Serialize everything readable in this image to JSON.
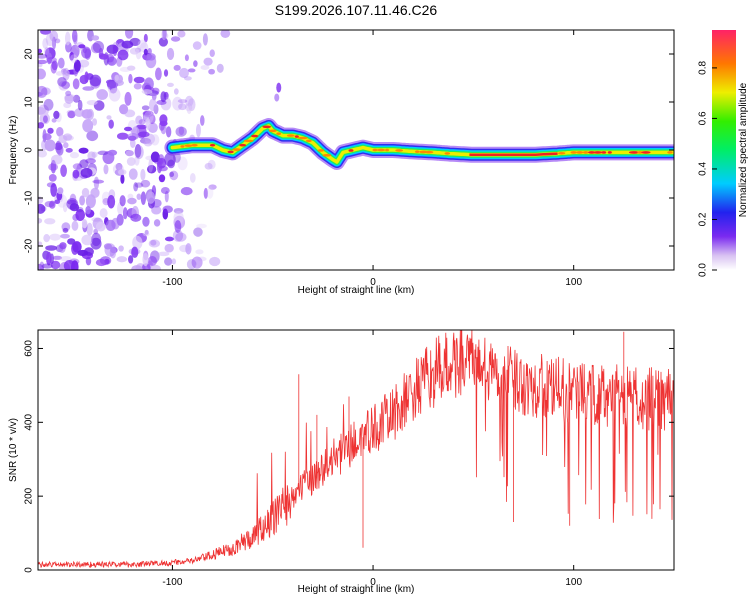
{
  "title": "S199.2026.107.11.46.C26",
  "chart_data": [
    {
      "type": "heatmap",
      "name": "spectrogram",
      "xlabel": "Height of straight line (km)",
      "ylabel": "Frequency (Hz)",
      "xlim": [
        -167,
        150
      ],
      "ylim": [
        -25,
        25
      ],
      "xticks": [
        -100,
        0,
        100
      ],
      "yticks": [
        -20,
        -10,
        0,
        10,
        20
      ],
      "colorbar": {
        "label": "Normalized spectral amplitude",
        "range": [
          0,
          0.95
        ],
        "ticks": [
          0.0,
          0.2,
          0.4,
          0.6,
          0.8
        ]
      },
      "ridge": {
        "x": [
          -100,
          -90,
          -80,
          -75,
          -70,
          -65,
          -60,
          -55,
          -52,
          -50,
          -45,
          -40,
          -35,
          -30,
          -25,
          -20,
          -18,
          -15,
          -10,
          -5,
          0,
          10,
          20,
          30,
          40,
          50,
          60,
          70,
          80,
          90,
          100,
          110,
          120,
          130,
          140,
          150
        ],
        "y": [
          0.5,
          1,
          1,
          0,
          -0.5,
          1,
          2.5,
          4.5,
          5,
          4,
          3,
          3,
          2.5,
          1.5,
          -0.5,
          -2,
          -2.5,
          -0.5,
          0,
          0.5,
          0,
          0,
          -0.3,
          -0.5,
          -0.8,
          -1,
          -1,
          -1,
          -1,
          -0.8,
          -0.5,
          -0.5,
          -0.5,
          -0.5,
          -0.5,
          -0.5
        ]
      },
      "noise_region_x": [
        -167,
        -85
      ]
    },
    {
      "type": "line",
      "name": "snr",
      "xlabel": "Height of straight line (km)",
      "ylabel": "SNR (10 * v/v)",
      "xlim": [
        -167,
        150
      ],
      "ylim": [
        0,
        650
      ],
      "xticks": [
        -100,
        0,
        100
      ],
      "yticks": [
        0,
        200,
        400,
        600
      ],
      "series": [
        {
          "name": "SNR",
          "color": "#ee3333",
          "envelope_x": [
            -167,
            -120,
            -100,
            -90,
            -80,
            -70,
            -60,
            -50,
            -40,
            -30,
            -20,
            -10,
            0,
            10,
            20,
            30,
            40,
            45,
            50,
            60,
            80,
            100,
            120,
            140,
            150
          ],
          "envelope_y": [
            15,
            15,
            20,
            25,
            40,
            60,
            90,
            140,
            200,
            250,
            300,
            340,
            380,
            420,
            480,
            530,
            560,
            570,
            565,
            530,
            500,
            480,
            470,
            465,
            470
          ],
          "spikes": [
            {
              "x": -37,
              "y": 530
            },
            {
              "x": -28,
              "y": 420
            },
            {
              "x": -12,
              "y": 470
            },
            {
              "x": -5,
              "y": 60
            },
            {
              "x": 125,
              "y": 645
            },
            {
              "x": 70,
              "y": 130
            },
            {
              "x": 98,
              "y": 120
            }
          ]
        }
      ]
    }
  ]
}
